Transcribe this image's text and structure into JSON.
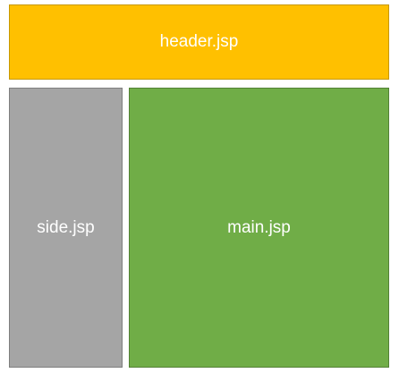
{
  "layout": {
    "header": {
      "label": "header.jsp",
      "color": "#FFC000"
    },
    "side": {
      "label": "side.jsp",
      "color": "#A5A5A5"
    },
    "main": {
      "label": "main.jsp",
      "color": "#70AD47"
    }
  }
}
